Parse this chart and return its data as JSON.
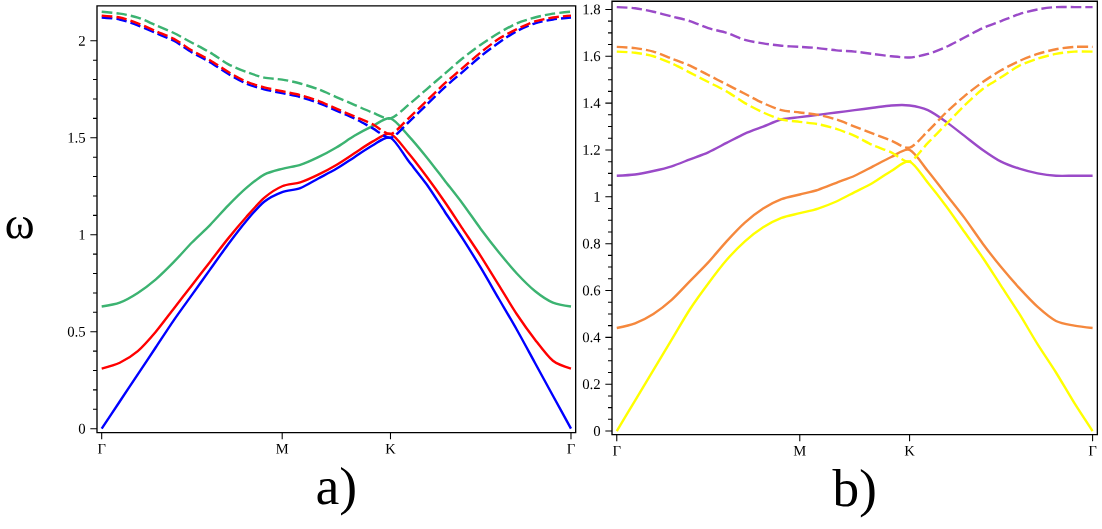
{
  "chart_data": [
    {
      "type": "line",
      "xlabel": "a)",
      "ylabel": "ω",
      "categories": [
        "Γ",
        null,
        null,
        null,
        null,
        null,
        null,
        null,
        null,
        null,
        "M",
        null,
        null,
        null,
        null,
        null,
        "K",
        null,
        null,
        null,
        null,
        null,
        null,
        null,
        null,
        null,
        "Γ"
      ],
      "ylim": [
        -0.02,
        2.18
      ],
      "yticks": [
        0,
        0.5,
        1,
        1.5,
        2
      ],
      "series": [
        {
          "color": "#3cb371",
          "line_style": "solid",
          "values": [
            0.63,
            0.65,
            0.7,
            0.77,
            0.86,
            0.96,
            1.05,
            1.15,
            1.24,
            1.31,
            1.34,
            1.36,
            1.4,
            1.45,
            1.51,
            1.56,
            1.6,
            1.51,
            1.4,
            1.28,
            1.16,
            1.03,
            0.91,
            0.8,
            0.71,
            0.65,
            0.63
          ]
        },
        {
          "color": "#ff0000",
          "line_style": "solid",
          "values": [
            0.31,
            0.34,
            0.4,
            0.5,
            0.62,
            0.74,
            0.86,
            0.98,
            1.09,
            1.19,
            1.25,
            1.27,
            1.31,
            1.36,
            1.42,
            1.48,
            1.52,
            1.42,
            1.3,
            1.17,
            1.03,
            0.89,
            0.74,
            0.59,
            0.46,
            0.35,
            0.31
          ]
        },
        {
          "color": "#0000ff",
          "line_style": "solid",
          "values": [
            0,
            0.14,
            0.28,
            0.42,
            0.56,
            0.69,
            0.82,
            0.95,
            1.07,
            1.17,
            1.22,
            1.24,
            1.29,
            1.34,
            1.4,
            1.46,
            1.5,
            1.38,
            1.26,
            1.12,
            0.98,
            0.83,
            0.67,
            0.51,
            0.34,
            0.17,
            0
          ]
        },
        {
          "color": "#3cb371",
          "line_style": "dashed",
          "values": [
            2.15,
            2.14,
            2.12,
            2.08,
            2.04,
            1.99,
            1.94,
            1.88,
            1.84,
            1.81,
            1.8,
            1.78,
            1.75,
            1.71,
            1.67,
            1.63,
            1.6,
            1.67,
            1.75,
            1.83,
            1.91,
            1.98,
            2.04,
            2.09,
            2.12,
            2.14,
            2.15
          ]
        },
        {
          "color": "#0000ff",
          "line_style": "dashed",
          "values": [
            2.12,
            2.11,
            2.08,
            2.04,
            2.0,
            1.94,
            1.89,
            1.83,
            1.78,
            1.75,
            1.73,
            1.71,
            1.68,
            1.64,
            1.6,
            1.55,
            1.5,
            1.58,
            1.67,
            1.76,
            1.84,
            1.92,
            1.99,
            2.05,
            2.09,
            2.11,
            2.12
          ]
        },
        {
          "color": "#ff0000",
          "line_style": "dashed",
          "values": [
            2.13,
            2.12,
            2.09,
            2.05,
            2.01,
            1.95,
            1.9,
            1.84,
            1.79,
            1.76,
            1.74,
            1.72,
            1.69,
            1.65,
            1.61,
            1.57,
            1.52,
            1.6,
            1.69,
            1.78,
            1.86,
            1.94,
            2.01,
            2.06,
            2.1,
            2.12,
            2.13
          ]
        }
      ]
    },
    {
      "type": "line",
      "xlabel": "b)",
      "categories": [
        "Γ",
        null,
        null,
        null,
        null,
        null,
        null,
        null,
        null,
        null,
        "M",
        null,
        null,
        null,
        null,
        null,
        "K",
        null,
        null,
        null,
        null,
        null,
        null,
        null,
        null,
        null,
        "Γ"
      ],
      "ylim": [
        -0.015,
        1.835
      ],
      "yticks": [
        0,
        0.2,
        0.4,
        0.6,
        0.8,
        1,
        1.2,
        1.4,
        1.6,
        1.8
      ],
      "series": [
        {
          "color": "#f5883d",
          "line_style": "solid",
          "values": [
            0.44,
            0.46,
            0.5,
            0.56,
            0.64,
            0.72,
            0.81,
            0.89,
            0.95,
            0.99,
            1.01,
            1.03,
            1.06,
            1.09,
            1.13,
            1.17,
            1.2,
            1.11,
            1.01,
            0.91,
            0.8,
            0.7,
            0.61,
            0.53,
            0.47,
            0.45,
            0.44
          ]
        },
        {
          "color": "#ffff00",
          "line_style": "solid",
          "values": [
            0,
            0.13,
            0.26,
            0.39,
            0.52,
            0.63,
            0.73,
            0.81,
            0.87,
            0.91,
            0.93,
            0.95,
            0.98,
            1.02,
            1.06,
            1.11,
            1.15,
            1.06,
            0.96,
            0.85,
            0.74,
            0.62,
            0.5,
            0.37,
            0.25,
            0.12,
            0
          ]
        },
        {
          "color": "#9a4ac8",
          "line_style": "solid",
          "values": [
            1.09,
            1.095,
            1.11,
            1.13,
            1.16,
            1.19,
            1.23,
            1.27,
            1.3,
            1.33,
            1.34,
            1.35,
            1.36,
            1.37,
            1.38,
            1.39,
            1.39,
            1.37,
            1.32,
            1.26,
            1.2,
            1.15,
            1.12,
            1.1,
            1.09,
            1.09,
            1.09
          ]
        },
        {
          "color": "#f5883d",
          "line_style": "dashed",
          "values": [
            1.64,
            1.635,
            1.62,
            1.59,
            1.56,
            1.52,
            1.48,
            1.44,
            1.4,
            1.37,
            1.36,
            1.35,
            1.33,
            1.3,
            1.27,
            1.24,
            1.21,
            1.28,
            1.36,
            1.43,
            1.49,
            1.54,
            1.58,
            1.61,
            1.63,
            1.64,
            1.64
          ]
        },
        {
          "color": "#ffff00",
          "line_style": "dashed",
          "values": [
            1.62,
            1.615,
            1.6,
            1.57,
            1.53,
            1.49,
            1.45,
            1.4,
            1.36,
            1.33,
            1.32,
            1.31,
            1.29,
            1.26,
            1.22,
            1.19,
            1.15,
            1.23,
            1.31,
            1.39,
            1.46,
            1.51,
            1.56,
            1.59,
            1.61,
            1.62,
            1.62
          ]
        },
        {
          "color": "#9a4ac8",
          "line_style": "dashed",
          "values": [
            1.81,
            1.805,
            1.79,
            1.77,
            1.75,
            1.72,
            1.7,
            1.67,
            1.655,
            1.645,
            1.64,
            1.635,
            1.625,
            1.62,
            1.61,
            1.6,
            1.595,
            1.61,
            1.64,
            1.68,
            1.72,
            1.75,
            1.78,
            1.8,
            1.81,
            1.81,
            1.81
          ]
        }
      ]
    }
  ]
}
